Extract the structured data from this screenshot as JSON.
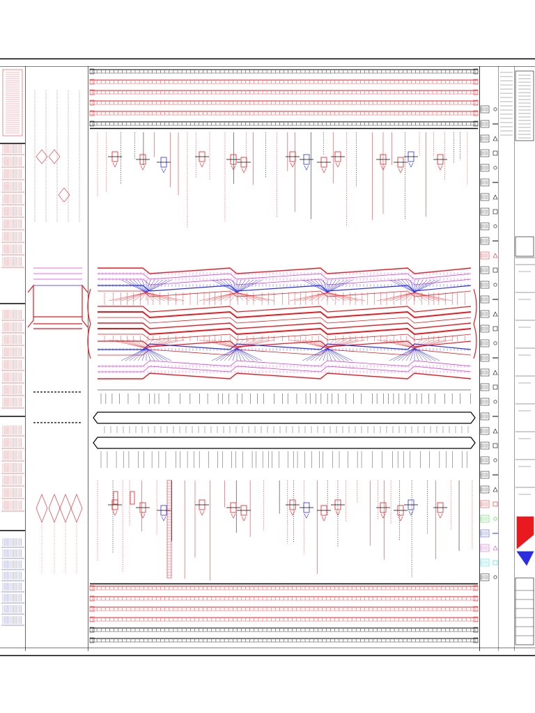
{
  "drawing": {
    "title": ""
  },
  "colors": {
    "background": "#ffffff",
    "line": "#000000",
    "red_circuit": "#e8191f",
    "blue_circuit": "#2a2ee0",
    "magenta": "#d43cd4",
    "green": "#2bd12b",
    "cyan": "#22d8d8"
  },
  "regions": [
    {
      "id": "left-panel",
      "description": ""
    },
    {
      "id": "center-drawing",
      "description": ""
    },
    {
      "id": "right-legend",
      "description": ""
    },
    {
      "id": "title-block",
      "description": ""
    }
  ]
}
